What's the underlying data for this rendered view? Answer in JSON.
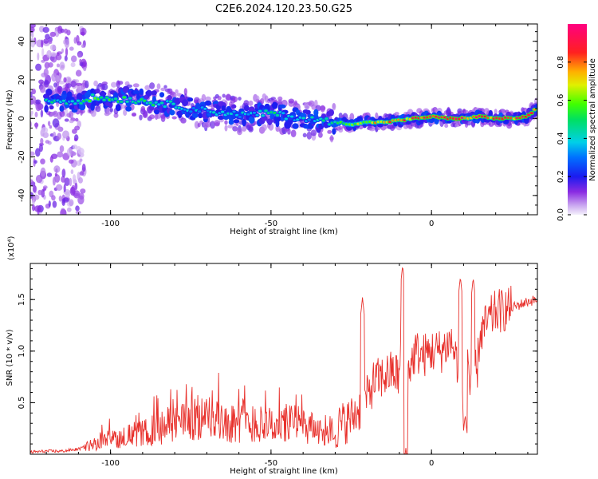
{
  "title": "C2E6.2024.120.23.50.G25",
  "chart_data": [
    {
      "type": "heatmap",
      "xlabel": "Height of straight line (km)",
      "ylabel": "Frequency (Hz)",
      "xlim": [
        -125,
        33
      ],
      "ylim": [
        -50,
        49
      ],
      "x_ticks": [
        -100,
        -50,
        0
      ],
      "y_ticks": [
        -40,
        -20,
        0,
        20,
        40
      ],
      "colorbar": {
        "label": "Normalized spectral amplitude",
        "range": [
          0.0,
          1.0
        ],
        "ticks": [
          "0.0",
          "0.2",
          "0.4",
          "0.6",
          "0.8"
        ],
        "colormap": "rainbow (violet-blue-cyan-green-yellow-red-magenta)"
      },
      "ridge": {
        "description": "Frequency ridge of strongest amplitude vs height",
        "x": [
          -122,
          -115,
          -110,
          -105,
          -100,
          -95,
          -90,
          -85,
          -80,
          -75,
          -70,
          -65,
          -60,
          -55,
          -50,
          -45,
          -40,
          -35,
          -30,
          -25,
          -20,
          -15,
          -10,
          -5,
          0,
          5,
          10,
          15,
          20,
          25,
          30,
          33
        ],
        "y": [
          10,
          9,
          9,
          11,
          10,
          10,
          9,
          8,
          7,
          5,
          4,
          3,
          2,
          2,
          3,
          1,
          0,
          -1,
          -2,
          -3,
          -2,
          -2,
          -1,
          0,
          1,
          0,
          0,
          1,
          0,
          0,
          1,
          6
        ],
        "peak_amplitude": [
          0.5,
          0.45,
          0.45,
          0.6,
          0.55,
          0.55,
          0.5,
          0.5,
          0.45,
          0.4,
          0.4,
          0.4,
          0.4,
          0.4,
          0.55,
          0.4,
          0.4,
          0.45,
          0.55,
          0.7,
          0.75,
          0.8,
          0.85,
          0.9,
          0.95,
          0.95,
          0.95,
          0.95,
          0.95,
          0.95,
          0.95,
          0.8
        ]
      }
    },
    {
      "type": "line",
      "xlabel": "Height of straight line (km)",
      "ylabel": "SNR (10 * v/v)",
      "scale_note": "(x10⁴)",
      "xlim": [
        -125,
        33
      ],
      "ylim": [
        0,
        1.85
      ],
      "x_ticks": [
        -100,
        -50,
        0
      ],
      "y_ticks": [
        "0.5",
        "1.0",
        "1.5"
      ],
      "series": [
        {
          "color": "#e8312c",
          "x": [
            -125,
            -120,
            -115,
            -110,
            -105,
            -100,
            -95,
            -90,
            -85,
            -80,
            -75,
            -70,
            -65,
            -60,
            -55,
            -50,
            -45,
            -40,
            -35,
            -30,
            -25,
            -22,
            -20,
            -18,
            -15,
            -12,
            -10,
            -9,
            -8,
            -6,
            -5,
            -3,
            0,
            3,
            6,
            8,
            10,
            11,
            12,
            13,
            14,
            15,
            18,
            20,
            25,
            30,
            33
          ],
          "y": [
            0.02,
            0.03,
            0.03,
            0.05,
            0.1,
            0.15,
            0.18,
            0.2,
            0.25,
            0.3,
            0.35,
            0.35,
            0.32,
            0.3,
            0.3,
            0.28,
            0.3,
            0.28,
            0.22,
            0.25,
            0.35,
            0.45,
            0.55,
            0.7,
            0.75,
            0.8,
            0.75,
            1.3,
            0.8,
            0.9,
            1.0,
            0.95,
            1.0,
            1.0,
            1.1,
            0.9,
            0.5,
            1.25,
            0.6,
            1.2,
            0.7,
            1.15,
            1.3,
            1.38,
            1.42,
            1.48,
            1.5
          ]
        }
      ],
      "spikes": [
        {
          "x": -21.5,
          "y": 1.52
        },
        {
          "x": -9,
          "y": 1.83
        },
        {
          "x": -8,
          "y": 0.06
        },
        {
          "x": 9,
          "y": 1.72
        },
        {
          "x": 13,
          "y": 1.71
        },
        {
          "x": 10.5,
          "y": 0.38
        }
      ]
    }
  ]
}
